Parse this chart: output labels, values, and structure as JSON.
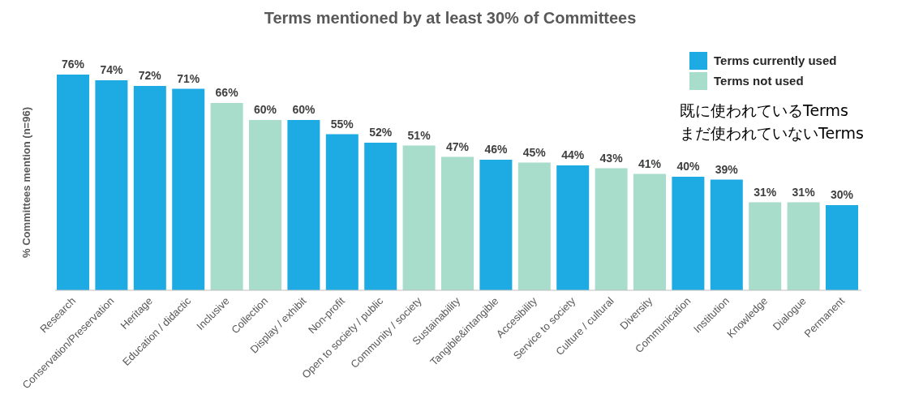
{
  "chart_data": {
    "type": "bar",
    "title": "Terms mentioned by at least 30% of Committees",
    "ylabel": "% Committees mention (n=96)",
    "categories": [
      "Research",
      "Conservation/Preservation",
      "Heritage",
      "Education / didactic",
      "Inclusive",
      "Collection",
      "Display / exhibit",
      "Non-profit",
      "Open to society / public",
      "Community / society",
      "Sustainability",
      "Tangible&intangible",
      "Accesibility",
      "Service to society",
      "Culture / cultural",
      "Diversity",
      "Communication",
      "Institution",
      "Knowledge",
      "Dialogue",
      "Permanent"
    ],
    "legend": "top right",
    "series": [
      {
        "name": "Terms currently used",
        "color": "#1eaae2",
        "values": [
          76,
          74,
          72,
          71,
          null,
          null,
          60,
          55,
          52,
          null,
          null,
          46,
          null,
          44,
          null,
          null,
          40,
          39,
          null,
          null,
          30
        ],
        "value_labels": [
          "76%",
          "74%",
          "72%",
          "71%",
          null,
          null,
          "60%",
          "55%",
          "52%",
          null,
          null,
          "46%",
          null,
          "44%",
          null,
          null,
          "40%",
          "39%",
          null,
          null,
          "30%"
        ]
      },
      {
        "name": "Terms not used",
        "color": "#a8dccb",
        "values": [
          null,
          null,
          null,
          null,
          66,
          60,
          null,
          null,
          null,
          51,
          47,
          null,
          45,
          null,
          43,
          41,
          null,
          null,
          31,
          31,
          null
        ],
        "value_labels": [
          null,
          null,
          null,
          null,
          "66%",
          "60%",
          null,
          null,
          null,
          "51%",
          "47%",
          null,
          "45%",
          null,
          "43%",
          "41%",
          null,
          null,
          "31%",
          "31%",
          null
        ]
      }
    ],
    "annotations": [
      "既に使われているTerms",
      "まだ使われていないTerms"
    ]
  }
}
